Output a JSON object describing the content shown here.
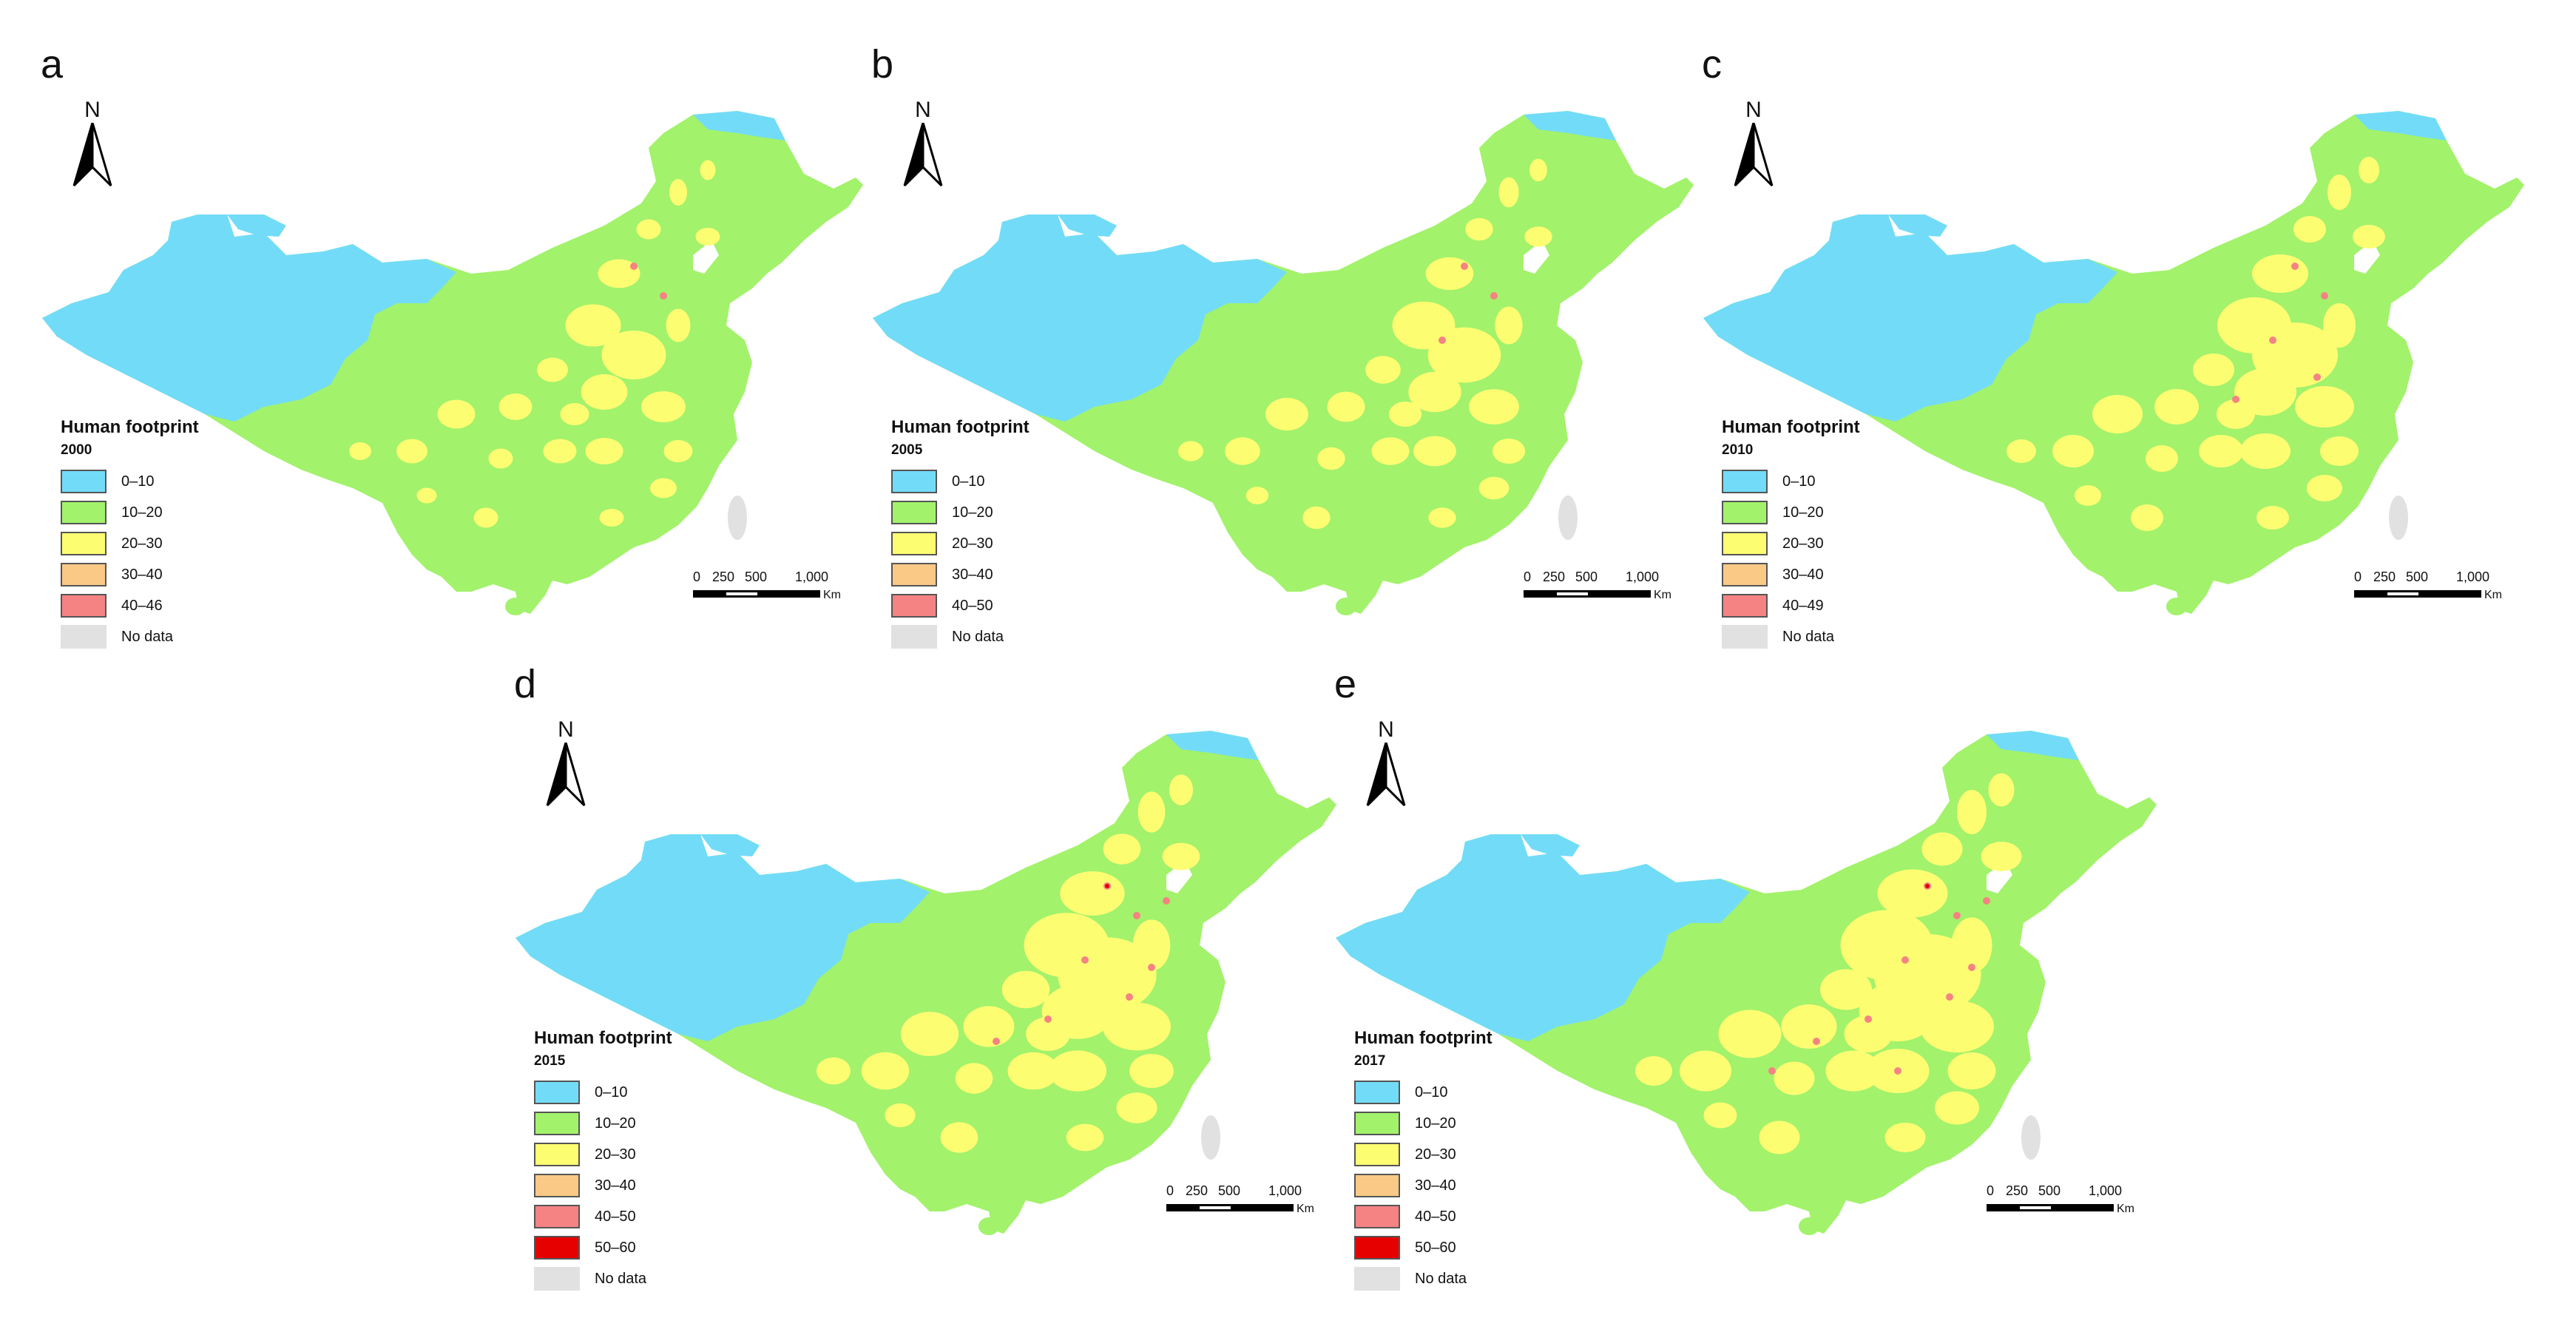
{
  "legend_title": "Human footprint",
  "no_data_label": "No data",
  "north_label": "N",
  "scale": {
    "ticks": [
      "0",
      "250",
      "500",
      "1,000"
    ],
    "unit": "Km"
  },
  "colors": {
    "0–10": "#72dcf8",
    "10–20": "#a2f26b",
    "20–30": "#fdfd72",
    "30–40": "#f9c985",
    "40–50": "#f58383",
    "50–60": "#e60000",
    "No data": "#e1e1e1"
  },
  "panels": [
    {
      "letter": "a",
      "year": "2000",
      "classes": [
        "0–10",
        "10–20",
        "20–30",
        "30–40",
        "40–46",
        "No data"
      ]
    },
    {
      "letter": "b",
      "year": "2005",
      "classes": [
        "0–10",
        "10–20",
        "20–30",
        "30–40",
        "40–50",
        "No data"
      ]
    },
    {
      "letter": "c",
      "year": "2010",
      "classes": [
        "0–10",
        "10–20",
        "20–30",
        "30–40",
        "40–49",
        "No data"
      ]
    },
    {
      "letter": "d",
      "year": "2015",
      "classes": [
        "0–10",
        "10–20",
        "20–30",
        "30–40",
        "40–50",
        "50–60",
        "No data"
      ]
    },
    {
      "letter": "e",
      "year": "2017",
      "classes": [
        "0–10",
        "10–20",
        "20–30",
        "30–40",
        "40–50",
        "50–60",
        "No data"
      ]
    }
  ]
}
